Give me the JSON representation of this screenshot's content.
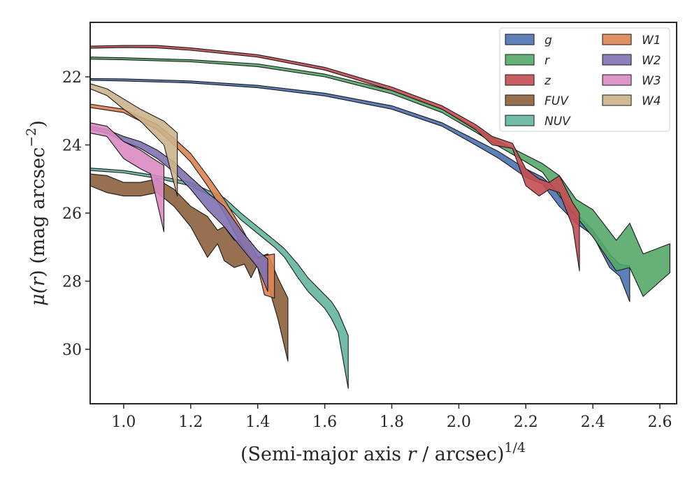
{
  "chart_data": {
    "type": "area",
    "xlabel": "(Semi-major axis r / arcsec)^1/4",
    "xlabel_parts": {
      "main": "(Semi-major axis ",
      "var": "r",
      "rest": " / arcsec)",
      "exp": "1/4"
    },
    "ylabel": "μ(r) (mag arcsec^−2)",
    "ylabel_parts": {
      "mu": "μ(",
      "var": "r",
      "rest": ") (mag arcsec",
      "exp": "−2",
      "close": ")"
    },
    "xlim": [
      0.9,
      2.65
    ],
    "ylim": [
      31.6,
      20.4
    ],
    "y_inverted": true,
    "xticks": [
      "1.0",
      "1.2",
      "1.4",
      "1.6",
      "1.8",
      "2.0",
      "2.2",
      "2.4",
      "2.6"
    ],
    "yticks": [
      "22",
      "24",
      "26",
      "28",
      "30"
    ],
    "legend": {
      "position": "top-right",
      "columns": 2
    },
    "series": [
      {
        "name": "g",
        "color": "#4c72b0",
        "x": [
          0.9,
          1.0,
          1.2,
          1.4,
          1.6,
          1.8,
          1.95,
          2.05,
          2.12,
          2.2,
          2.25,
          2.3,
          2.35,
          2.4,
          2.45,
          2.48,
          2.51
        ],
        "lo": [
          22.05,
          22.06,
          22.12,
          22.25,
          22.48,
          22.85,
          23.35,
          23.85,
          24.2,
          24.7,
          24.95,
          25.4,
          26.0,
          26.5,
          27.2,
          27.5,
          27.55
        ],
        "hi": [
          22.1,
          22.12,
          22.18,
          22.32,
          22.56,
          22.95,
          23.45,
          24.0,
          24.4,
          24.95,
          25.15,
          25.8,
          26.3,
          26.65,
          27.6,
          27.85,
          28.6
        ]
      },
      {
        "name": "r",
        "color": "#55a868",
        "x": [
          0.9,
          1.0,
          1.2,
          1.4,
          1.6,
          1.8,
          1.95,
          2.05,
          2.12,
          2.2,
          2.25,
          2.3,
          2.35,
          2.4,
          2.47,
          2.51,
          2.55,
          2.63
        ],
        "lo": [
          21.42,
          21.44,
          21.5,
          21.62,
          21.92,
          22.4,
          22.95,
          23.5,
          23.9,
          24.3,
          24.55,
          24.9,
          25.6,
          25.9,
          26.8,
          26.3,
          27.2,
          26.9
        ],
        "hi": [
          21.48,
          21.5,
          21.56,
          21.7,
          22.0,
          22.5,
          23.05,
          23.62,
          24.05,
          24.5,
          24.8,
          25.5,
          26.1,
          26.7,
          27.7,
          27.6,
          28.45,
          27.75
        ]
      },
      {
        "name": "z",
        "color": "#c44e52",
        "x": [
          0.9,
          1.0,
          1.1,
          1.2,
          1.4,
          1.6,
          1.8,
          1.95,
          2.05,
          2.1,
          2.16,
          2.2,
          2.24,
          2.27,
          2.3,
          2.34,
          2.36
        ],
        "lo": [
          21.1,
          21.08,
          21.08,
          21.15,
          21.35,
          21.72,
          22.3,
          22.85,
          23.4,
          23.75,
          23.95,
          24.7,
          25.0,
          25.1,
          24.9,
          25.7,
          26.0
        ],
        "hi": [
          21.16,
          21.14,
          21.15,
          21.22,
          21.42,
          21.8,
          22.4,
          22.95,
          23.55,
          24.0,
          24.1,
          25.2,
          25.5,
          25.3,
          25.4,
          26.4,
          27.7
        ]
      },
      {
        "name": "FUV",
        "color": "#8c613c",
        "x": [
          0.9,
          0.95,
          1.0,
          1.05,
          1.1,
          1.15,
          1.2,
          1.25,
          1.28,
          1.3,
          1.33,
          1.36,
          1.38,
          1.4,
          1.43,
          1.46,
          1.49
        ],
        "lo": [
          24.85,
          24.9,
          25.1,
          25.1,
          25.0,
          25.3,
          25.8,
          26.1,
          26.5,
          26.4,
          26.8,
          26.8,
          27.2,
          27.3,
          27.2,
          27.9,
          28.5
        ],
        "hi": [
          25.2,
          25.4,
          25.5,
          25.5,
          25.4,
          25.8,
          26.4,
          27.3,
          26.9,
          27.4,
          27.6,
          27.5,
          27.9,
          27.5,
          28.1,
          29.1,
          30.35
        ]
      },
      {
        "name": "NUV",
        "color": "#64b5a0",
        "x": [
          0.9,
          1.0,
          1.1,
          1.2,
          1.3,
          1.35,
          1.4,
          1.45,
          1.48,
          1.52,
          1.55,
          1.58,
          1.6,
          1.62,
          1.64,
          1.67
        ],
        "lo": [
          24.68,
          24.75,
          24.9,
          25.1,
          25.55,
          26.0,
          26.4,
          26.8,
          27.05,
          27.5,
          27.9,
          28.2,
          28.4,
          28.6,
          28.9,
          29.6
        ],
        "hi": [
          24.75,
          24.82,
          24.98,
          25.2,
          25.7,
          26.2,
          26.6,
          27.0,
          27.3,
          27.9,
          28.3,
          28.6,
          28.8,
          29.1,
          29.5,
          31.15
        ]
      },
      {
        "name": "W1",
        "color": "#dd8452",
        "x": [
          0.9,
          1.0,
          1.1,
          1.15,
          1.2,
          1.25,
          1.3,
          1.35,
          1.4,
          1.42,
          1.45
        ],
        "lo": [
          22.8,
          22.95,
          23.4,
          23.8,
          24.25,
          24.9,
          25.6,
          26.4,
          27.3,
          27.25,
          27.2
        ],
        "hi": [
          22.9,
          23.05,
          23.55,
          24.0,
          24.5,
          25.2,
          26.0,
          26.9,
          27.6,
          28.4,
          28.5
        ]
      },
      {
        "name": "W2",
        "color": "#8172b3",
        "x": [
          0.9,
          0.95,
          1.0,
          1.05,
          1.1,
          1.15,
          1.2,
          1.25,
          1.3,
          1.35,
          1.4,
          1.43
        ],
        "lo": [
          23.45,
          23.55,
          23.75,
          23.9,
          24.15,
          24.5,
          24.95,
          25.4,
          25.8,
          26.5,
          27.1,
          27.35
        ],
        "hi": [
          23.55,
          23.65,
          23.9,
          24.1,
          24.4,
          24.8,
          25.3,
          25.9,
          26.4,
          27.0,
          27.6,
          28.3
        ]
      },
      {
        "name": "W3",
        "color": "#da8bc3",
        "x": [
          0.9,
          0.95,
          1.0,
          1.05,
          1.08,
          1.12
        ],
        "lo": [
          23.35,
          23.45,
          23.9,
          24.15,
          24.35,
          24.6
        ],
        "hi": [
          23.65,
          23.75,
          24.4,
          24.7,
          24.85,
          26.55
        ]
      },
      {
        "name": "W4",
        "color": "#ccb28b",
        "x": [
          0.9,
          0.95,
          1.0,
          1.05,
          1.08,
          1.12,
          1.16
        ],
        "lo": [
          22.2,
          22.35,
          22.65,
          22.95,
          23.1,
          23.3,
          23.65
        ],
        "hi": [
          22.35,
          22.55,
          22.95,
          23.3,
          23.6,
          24.0,
          25.5
        ]
      }
    ]
  }
}
